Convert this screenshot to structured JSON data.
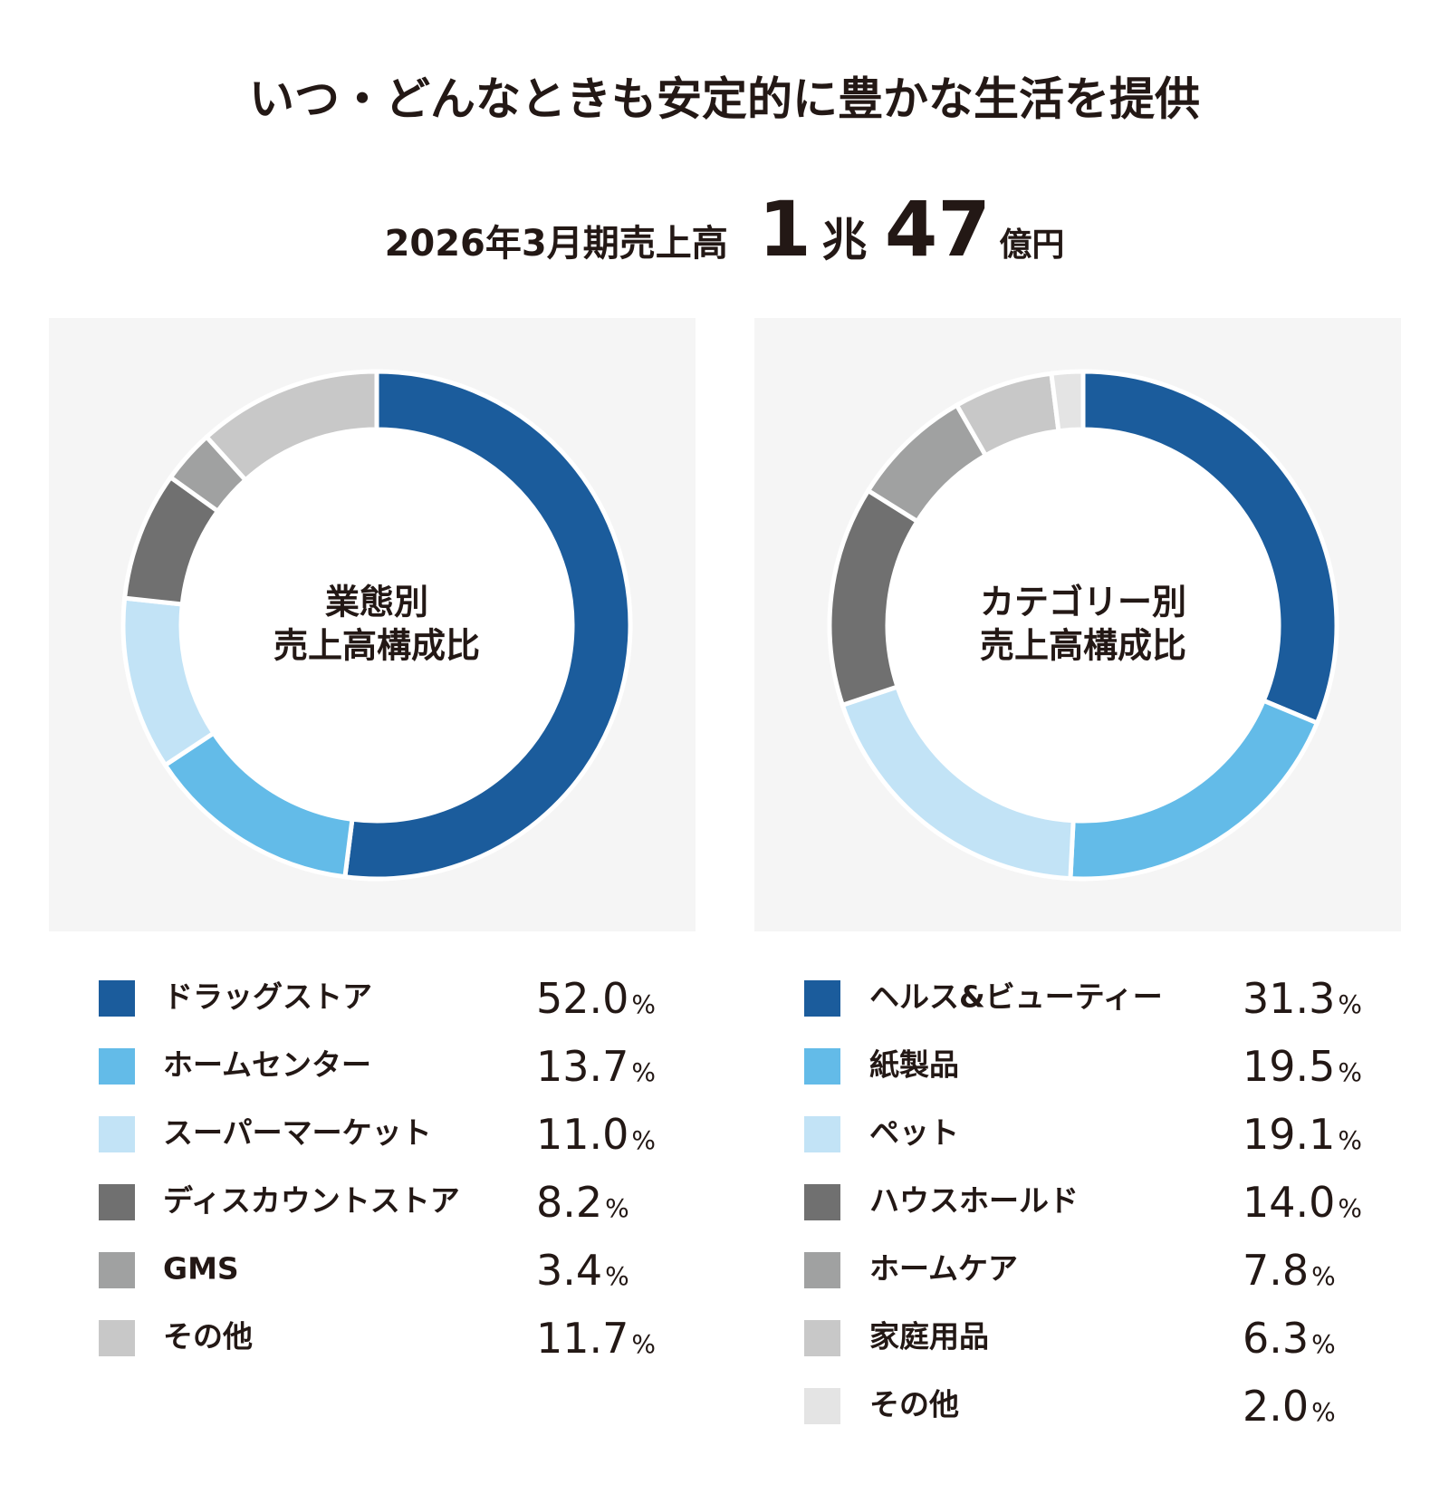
{
  "header": {
    "title": "いつ・どんなときも安定的に豊かな生活を提供",
    "period": "2026年3月期売上高",
    "amount_trillion": 1,
    "unit_trillion": "兆",
    "amount_billion": 47,
    "unit_billion": "億円"
  },
  "chart_data": [
    {
      "type": "donut",
      "title": [
        "業態別",
        "売上高構成比"
      ],
      "categories": [
        "ドラッグストア",
        "ホームセンター",
        "スーパーマーケット",
        "ディスカウントストア",
        "GMS",
        "その他"
      ],
      "values": [
        52.0,
        13.7,
        11.0,
        8.2,
        3.4,
        11.7
      ],
      "value_labels": [
        "52.0%",
        "13.7%",
        "11.0%",
        "8.2%",
        "3.4%",
        "11.7%"
      ],
      "colors": [
        "#1b5c9c",
        "#63bbe8",
        "#c2e3f6",
        "#707070",
        "#a0a1a1",
        "#c8c8c8"
      ]
    },
    {
      "type": "donut",
      "title": [
        "カテゴリー別",
        "売上高構成比"
      ],
      "categories": [
        "ヘルス&ビューティー",
        "紙製品",
        "ペット",
        "ハウスホールド",
        "ホームケア",
        "家庭用品",
        "その他"
      ],
      "values": [
        31.3,
        19.5,
        19.1,
        14.0,
        7.8,
        6.3,
        2.0
      ],
      "value_labels": [
        "31.3%",
        "19.5%",
        "19.1%",
        "14.0%",
        "7.8%",
        "6.3%",
        "2.0%"
      ],
      "colors": [
        "#1b5c9c",
        "#63bbe8",
        "#c2e3f6",
        "#707070",
        "#a0a1a1",
        "#c8c8c8",
        "#e4e4e4"
      ]
    }
  ]
}
